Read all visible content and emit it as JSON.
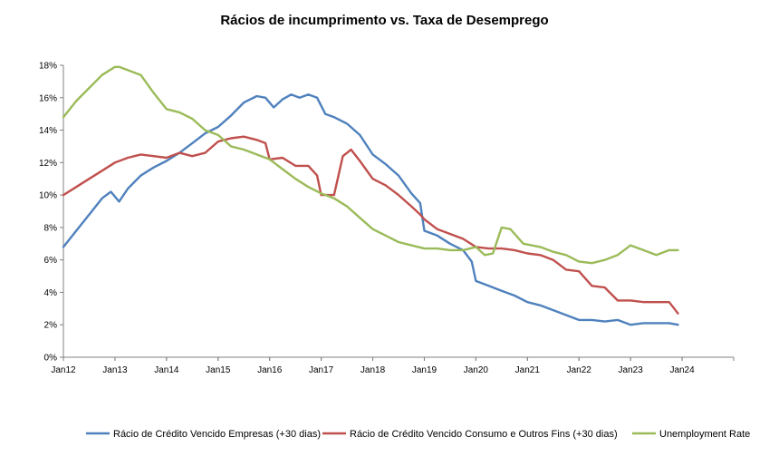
{
  "chart_data": {
    "type": "line",
    "title": "Rácios de incumprimento vs. Taxa de Desemprego",
    "xlabel": "",
    "ylabel": "",
    "ylim": [
      0,
      18
    ],
    "yticks": [
      "0%",
      "2%",
      "4%",
      "6%",
      "8%",
      "10%",
      "12%",
      "14%",
      "16%",
      "18%"
    ],
    "xticks": [
      "Jan12",
      "Jan13",
      "Jan14",
      "Jan15",
      "Jan16",
      "Jan17",
      "Jan18",
      "Jan19",
      "Jan20",
      "Jan21",
      "Jan22",
      "Jan23",
      "Jan24"
    ],
    "xlim": [
      2012.0,
      2025.0
    ],
    "grid": false,
    "legend_position": "bottom",
    "series": [
      {
        "name": "Rácio de Crédito Vencido Empresas (+30 dias)",
        "color": "#4F81BD",
        "x": [
          2012.0,
          2012.25,
          2012.5,
          2012.75,
          2012.92,
          2013.08,
          2013.25,
          2013.5,
          2013.75,
          2014.0,
          2014.25,
          2014.5,
          2014.75,
          2015.0,
          2015.25,
          2015.5,
          2015.75,
          2015.92,
          2016.08,
          2016.25,
          2016.42,
          2016.58,
          2016.75,
          2016.92,
          2017.08,
          2017.25,
          2017.5,
          2017.75,
          2018.0,
          2018.25,
          2018.5,
          2018.75,
          2018.92,
          2019.0,
          2019.25,
          2019.5,
          2019.75,
          2019.92,
          2020.0,
          2020.25,
          2020.5,
          2020.75,
          2021.0,
          2021.25,
          2021.5,
          2021.75,
          2022.0,
          2022.25,
          2022.5,
          2022.75,
          2023.0,
          2023.25,
          2023.5,
          2023.75,
          2023.92
        ],
        "y": [
          6.8,
          7.8,
          8.8,
          9.8,
          10.2,
          9.6,
          10.4,
          11.2,
          11.7,
          12.1,
          12.6,
          13.2,
          13.8,
          14.2,
          14.9,
          15.7,
          16.1,
          16.0,
          15.4,
          15.9,
          16.2,
          16.0,
          16.2,
          16.0,
          15.0,
          14.8,
          14.4,
          13.7,
          12.5,
          11.9,
          11.2,
          10.1,
          9.5,
          7.8,
          7.5,
          7.0,
          6.6,
          5.9,
          4.7,
          4.4,
          4.1,
          3.8,
          3.4,
          3.2,
          2.9,
          2.6,
          2.3,
          2.3,
          2.2,
          2.3,
          2.0,
          2.1,
          2.1,
          2.1,
          2.0
        ]
      },
      {
        "name": "Rácio de Crédito Vencido Consumo e Outros Fins (+30 dias)",
        "color": "#C0504D",
        "x": [
          2012.0,
          2012.25,
          2012.5,
          2012.75,
          2013.0,
          2013.25,
          2013.5,
          2013.75,
          2014.0,
          2014.25,
          2014.5,
          2014.75,
          2015.0,
          2015.25,
          2015.5,
          2015.75,
          2015.92,
          2016.0,
          2016.25,
          2016.5,
          2016.75,
          2016.92,
          2017.0,
          2017.25,
          2017.42,
          2017.58,
          2017.75,
          2018.0,
          2018.25,
          2018.5,
          2018.75,
          2018.92,
          2019.0,
          2019.25,
          2019.5,
          2019.75,
          2020.0,
          2020.25,
          2020.5,
          2020.75,
          2021.0,
          2021.25,
          2021.5,
          2021.75,
          2022.0,
          2022.25,
          2022.5,
          2022.75,
          2023.0,
          2023.25,
          2023.5,
          2023.75,
          2023.92
        ],
        "y": [
          10.0,
          10.5,
          11.0,
          11.5,
          12.0,
          12.3,
          12.5,
          12.4,
          12.3,
          12.6,
          12.4,
          12.6,
          13.3,
          13.5,
          13.6,
          13.4,
          13.2,
          12.2,
          12.3,
          11.8,
          11.8,
          11.2,
          10.0,
          10.0,
          12.4,
          12.8,
          12.1,
          11.0,
          10.6,
          10.0,
          9.3,
          8.8,
          8.5,
          7.9,
          7.6,
          7.3,
          6.8,
          6.7,
          6.7,
          6.6,
          6.4,
          6.3,
          6.0,
          5.4,
          5.3,
          4.4,
          4.3,
          3.5,
          3.5,
          3.4,
          3.4,
          3.4,
          2.7
        ]
      },
      {
        "name": "Unemployment Rate",
        "color": "#9BBB59",
        "x": [
          2012.0,
          2012.25,
          2012.5,
          2012.75,
          2013.0,
          2013.08,
          2013.25,
          2013.5,
          2013.75,
          2014.0,
          2014.25,
          2014.5,
          2014.75,
          2015.0,
          2015.25,
          2015.5,
          2015.75,
          2016.0,
          2016.25,
          2016.5,
          2016.75,
          2017.0,
          2017.25,
          2017.5,
          2017.75,
          2018.0,
          2018.25,
          2018.5,
          2018.75,
          2019.0,
          2019.25,
          2019.5,
          2019.75,
          2020.0,
          2020.17,
          2020.33,
          2020.5,
          2020.67,
          2020.92,
          2021.08,
          2021.25,
          2021.5,
          2021.75,
          2022.0,
          2022.25,
          2022.5,
          2022.75,
          2023.0,
          2023.25,
          2023.5,
          2023.75,
          2023.92
        ],
        "y": [
          14.8,
          15.8,
          16.6,
          17.4,
          17.9,
          17.9,
          17.7,
          17.4,
          16.3,
          15.3,
          15.1,
          14.7,
          14.0,
          13.7,
          13.0,
          12.8,
          12.5,
          12.2,
          11.6,
          11.0,
          10.5,
          10.1,
          9.8,
          9.3,
          8.6,
          7.9,
          7.5,
          7.1,
          6.9,
          6.7,
          6.7,
          6.6,
          6.6,
          6.8,
          6.3,
          6.4,
          8.0,
          7.9,
          7.0,
          6.9,
          6.8,
          6.5,
          6.3,
          5.9,
          5.8,
          6.0,
          6.3,
          6.9,
          6.6,
          6.3,
          6.6,
          6.6
        ]
      }
    ]
  }
}
